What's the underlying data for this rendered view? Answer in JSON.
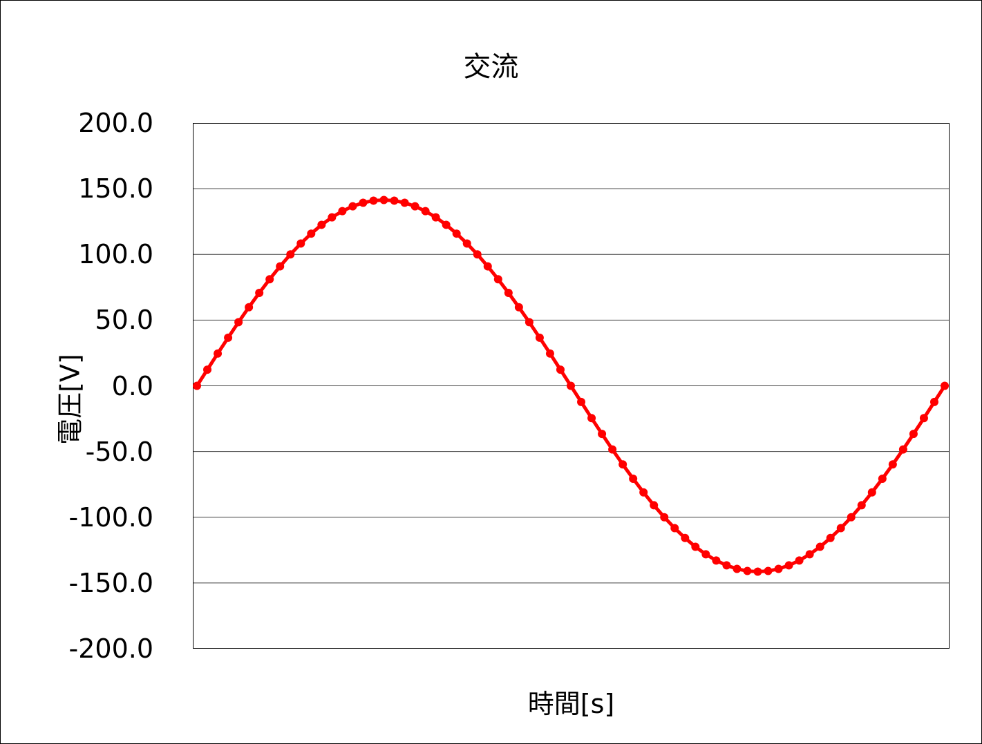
{
  "chart_data": {
    "type": "line",
    "title": "交流",
    "xlabel": "時間[s]",
    "ylabel": "電圧[V]",
    "ylim": [
      -200,
      200
    ],
    "yticks": [
      "200.0",
      "150.0",
      "100.0",
      "50.0",
      "0.0",
      "-50.0",
      "-100.0",
      "-150.0",
      "-200.0"
    ],
    "grid": "horizontal",
    "legend": "none",
    "x_tick_labels_visible": false,
    "series": [
      {
        "name": "電圧",
        "color": "#ff0000",
        "marker": "circle",
        "description": "One full sine cycle, amplitude ~141.4 V, 73 points at 5-degree steps",
        "x": [
          0,
          5,
          10,
          15,
          20,
          25,
          30,
          35,
          40,
          45,
          50,
          55,
          60,
          65,
          70,
          75,
          80,
          85,
          90,
          95,
          100,
          105,
          110,
          115,
          120,
          125,
          130,
          135,
          140,
          145,
          150,
          155,
          160,
          165,
          170,
          175,
          180,
          185,
          190,
          195,
          200,
          205,
          210,
          215,
          220,
          225,
          230,
          235,
          240,
          245,
          250,
          255,
          260,
          265,
          270,
          275,
          280,
          285,
          290,
          295,
          300,
          305,
          310,
          315,
          320,
          325,
          330,
          335,
          340,
          345,
          350,
          355,
          360
        ],
        "values": [
          0.0,
          12.3,
          24.6,
          36.6,
          48.4,
          59.8,
          70.7,
          81.1,
          90.9,
          100.0,
          108.3,
          115.8,
          122.5,
          128.2,
          132.9,
          136.6,
          139.3,
          140.9,
          141.4,
          140.9,
          139.3,
          136.6,
          132.9,
          128.2,
          122.5,
          115.8,
          108.3,
          100.0,
          90.9,
          81.1,
          70.7,
          59.8,
          48.4,
          36.6,
          24.6,
          12.3,
          0.0,
          -12.3,
          -24.6,
          -36.6,
          -48.4,
          -59.8,
          -70.7,
          -81.1,
          -90.9,
          -100.0,
          -108.3,
          -115.8,
          -122.5,
          -128.2,
          -132.9,
          -136.6,
          -139.3,
          -140.9,
          -141.4,
          -140.9,
          -139.3,
          -136.6,
          -132.9,
          -128.2,
          -122.5,
          -115.8,
          -108.3,
          -100.0,
          -90.9,
          -81.1,
          -70.7,
          -59.8,
          -48.4,
          -36.6,
          -24.6,
          -12.3,
          0.0
        ]
      }
    ]
  }
}
